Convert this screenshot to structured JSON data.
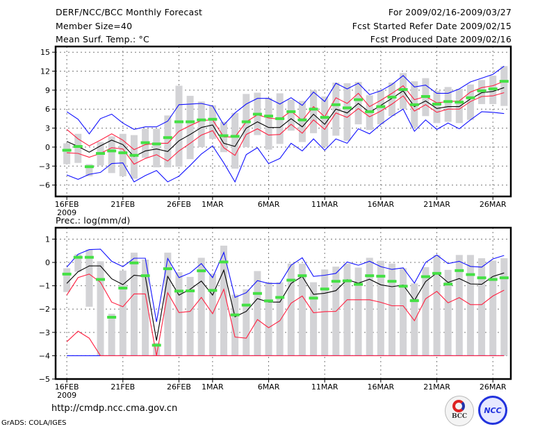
{
  "header": {
    "title": "DERF/NCC/BCC Monthly Forecast",
    "member_size": "Member Size=40",
    "variable": "Mean Surf. Temp.: °C",
    "period": "For 2009/02/16-2009/03/27",
    "started": "Fcst Started Refer Date 2009/02/15",
    "produced": "Fcst Produced Date 2009/02/16"
  },
  "footer": {
    "url": "http://cmdp.ncc.cma.gov.cn",
    "credit": "GrADS: COLA/IGES",
    "logos": [
      "BCC",
      "NCC"
    ]
  },
  "colors": {
    "mean": "#000000",
    "red": "#ff2040",
    "blue": "#1010ff",
    "green": "#44e044",
    "box": "#d3d3d6"
  },
  "chart_data": [
    {
      "type": "box-line",
      "title": "Mean Surf. Temp.: °C",
      "ylabel": "",
      "ylim": [
        -7.8,
        15.9
      ],
      "yticks": [
        -6,
        -3,
        0,
        3,
        6,
        9,
        12,
        15
      ],
      "xlim": [
        -1,
        39.6
      ],
      "grid": true,
      "xticks": [
        {
          "day": 0,
          "label": "16FEB",
          "sub": "2009"
        },
        {
          "day": 5,
          "label": "21FEB"
        },
        {
          "day": 10,
          "label": "26FEB"
        },
        {
          "day": 13,
          "label": "1MAR"
        },
        {
          "day": 18,
          "label": "6MAR"
        },
        {
          "day": 23,
          "label": "11MAR"
        },
        {
          "day": 28,
          "label": "16MAR"
        },
        {
          "day": 33,
          "label": "21MAR"
        },
        {
          "day": 38,
          "label": "26MAR"
        }
      ],
      "box_min": [
        -2.7,
        -2.5,
        -4.6,
        -2.9,
        -4.1,
        -4.6,
        -5.0,
        -1.7,
        -3.2,
        -3.2,
        -3.1,
        -1.9,
        0,
        1.3,
        -0.8,
        -3.4,
        0,
        1.9,
        -0.4,
        0.5,
        2.6,
        0.8,
        2.2,
        0.1,
        1.8,
        1.0,
        3.6,
        2.7,
        3.6,
        4.9,
        6.0,
        3.1,
        4.9,
        3.8,
        4.0,
        3.8,
        4.3,
        6.8,
        6.8,
        6.5
      ],
      "box_max": [
        0.6,
        2.1,
        -2.7,
        0.8,
        1.7,
        2.1,
        1.9,
        2.9,
        2.9,
        5.0,
        9.7,
        8.1,
        7.2,
        6.6,
        4.0,
        5.4,
        8.4,
        8.6,
        7.8,
        8.5,
        7.5,
        7.3,
        9.0,
        8.0,
        10.2,
        10.1,
        10.3,
        8.2,
        9.0,
        10.2,
        11.7,
        10.4,
        10.9,
        8.9,
        9.5,
        9.2,
        9.9,
        10.6,
        11.3,
        12.8
      ],
      "green": [
        -0.5,
        0.1,
        -3.1,
        -1.0,
        -0.6,
        -0.9,
        -1.3,
        0.7,
        0.5,
        1.5,
        4.0,
        4.0,
        4.3,
        4.4,
        1.8,
        1.7,
        4.0,
        5.2,
        4.9,
        4.5,
        5.6,
        4.3,
        6.0,
        4.7,
        6.7,
        6.2,
        7.5,
        5.6,
        6.4,
        7.9,
        9.1,
        6.7,
        8.0,
        6.8,
        7.2,
        7.1,
        7.8,
        8.9,
        9.2,
        10.4
      ],
      "series": [
        {
          "name": "blue_upper",
          "color": "#1010ff",
          "values": [
            5.6,
            4.4,
            2.1,
            4.5,
            5.2,
            3.8,
            2.8,
            3.2,
            3.2,
            4.1,
            6.7,
            6.8,
            6.9,
            6.5,
            3.5,
            5.4,
            6.8,
            7.7,
            7.7,
            6.8,
            7.8,
            6.6,
            8.7,
            7.2,
            10.1,
            9.2,
            10.1,
            8.3,
            8.9,
            9.9,
            11.3,
            9.5,
            9.8,
            8.5,
            8.5,
            9.2,
            10.3,
            10.9,
            11.5,
            12.8
          ]
        },
        {
          "name": "blue_lower",
          "color": "#1010ff",
          "values": [
            -4.4,
            -5.1,
            -4.3,
            -4.0,
            -2.6,
            -2.5,
            -5.5,
            -4.5,
            -3.7,
            -5.5,
            -4.6,
            -2.9,
            -1.1,
            0.2,
            -2.5,
            -5.5,
            -1.2,
            -0.1,
            -2.6,
            -1.8,
            0.6,
            -0.6,
            1.3,
            -0.5,
            1.3,
            0.6,
            2.9,
            2.1,
            3.6,
            4.9,
            6.0,
            2.5,
            4.3,
            2.8,
            3.8,
            2.9,
            4.3,
            5.6,
            5.5,
            5.3
          ]
        },
        {
          "name": "red_upper",
          "color": "#ff2040",
          "values": [
            2.8,
            1.3,
            0.2,
            1.1,
            2.1,
            1.1,
            -0.4,
            0.4,
            0.6,
            0.6,
            2.5,
            3.4,
            4.2,
            4.3,
            1.6,
            1.6,
            4.0,
            5.1,
            4.6,
            4.4,
            5.7,
            4.2,
            6.4,
            4.8,
            7.8,
            6.9,
            8.5,
            6.4,
            7.4,
            8.5,
            9.7,
            7.5,
            8.0,
            7.0,
            7.2,
            7.3,
            8.7,
            9.4,
            9.7,
            10.4
          ]
        },
        {
          "name": "red_lower",
          "color": "#ff2040",
          "values": [
            -0.9,
            -1.0,
            -1.6,
            -1.0,
            -0.1,
            -0.3,
            -2.7,
            -1.8,
            -1.2,
            -2.2,
            -0.6,
            0.6,
            1.9,
            2.6,
            -0.1,
            -1.3,
            2.0,
            2.9,
            1.9,
            2.0,
            3.6,
            2.2,
            4.3,
            2.8,
            5.4,
            4.7,
            6.1,
            4.8,
            5.7,
            6.8,
            8.1,
            5.7,
            6.7,
            5.5,
            6.0,
            6.0,
            7.2,
            8.0,
            8.1,
            8.6
          ]
        },
        {
          "name": "mean",
          "color": "#000000",
          "values": [
            0.9,
            0.1,
            -0.8,
            0.2,
            1.1,
            0.4,
            -1.5,
            -0.6,
            -0.3,
            -0.7,
            1.0,
            2.0,
            3.1,
            3.5,
            0.6,
            0.1,
            3.0,
            4.0,
            3.1,
            3.1,
            4.5,
            3.2,
            5.2,
            3.6,
            6.0,
            5.4,
            6.9,
            5.5,
            6.6,
            7.7,
            8.9,
            6.4,
            7.3,
            6.1,
            6.4,
            6.4,
            7.6,
            8.6,
            8.8,
            9.4
          ]
        }
      ]
    },
    {
      "type": "box-line",
      "title": "Prec.: log(mm/d)",
      "ylim": [
        -5,
        1.49
      ],
      "yticks": [
        -5,
        -4,
        -3,
        -2,
        -1,
        0,
        1
      ],
      "xlim": [
        -1,
        39.6
      ],
      "grid": true,
      "xticks": [
        {
          "day": 0,
          "label": "16FEB",
          "sub": "2009"
        },
        {
          "day": 5,
          "label": "21FEB"
        },
        {
          "day": 10,
          "label": "26FEB"
        },
        {
          "day": 13,
          "label": "1MAR"
        },
        {
          "day": 18,
          "label": "6MAR"
        },
        {
          "day": 23,
          "label": "11MAR"
        },
        {
          "day": 28,
          "label": "16MAR"
        },
        {
          "day": 33,
          "label": "21MAR"
        },
        {
          "day": 38,
          "label": "26MAR"
        }
      ],
      "box_min": [
        -1.27,
        -0.4,
        -1.9,
        -4,
        -4,
        -4,
        -4,
        -4,
        -4,
        -4,
        -4,
        -4,
        -4,
        -4,
        -4,
        -4,
        -4,
        -4,
        -4,
        -4,
        -4,
        -4,
        -4,
        -4,
        -4,
        -4,
        -4,
        -4,
        -4,
        -4,
        -4,
        -4,
        -4,
        -4,
        -4,
        -4,
        -4,
        -4,
        -4,
        -4
      ],
      "box_max": [
        -0.25,
        0.35,
        0.55,
        0.05,
        -2.2,
        -0.35,
        0.42,
        0.12,
        -3.45,
        0.42,
        -0.42,
        -0.62,
        0.2,
        -0.48,
        0.72,
        -1.38,
        -1.15,
        -0.37,
        -0.85,
        -0.85,
        -0.05,
        -0.05,
        -0.85,
        -0.3,
        -0.18,
        -0.05,
        -0.22,
        0.2,
        0.07,
        -0.05,
        -0.25,
        -0.9,
        -0.2,
        0.32,
        -0.32,
        0.32,
        0.32,
        0.18,
        0.08,
        0.18
      ],
      "green": [
        -0.5,
        0.22,
        0.22,
        -0.73,
        -2.35,
        -1.1,
        -0.02,
        -0.57,
        -3.55,
        -0.27,
        -1.23,
        -1.22,
        -0.36,
        -1.2,
        0.02,
        -2.25,
        -1.83,
        -1.33,
        -1.65,
        -1.5,
        -0.76,
        -0.57,
        -1.53,
        -1.14,
        -0.81,
        -0.79,
        -0.94,
        -0.57,
        -0.59,
        -0.81,
        -1.02,
        -1.64,
        -0.61,
        -0.47,
        -0.93,
        -0.35,
        -0.52,
        -0.66,
        -0.73,
        -0.66
      ],
      "series": [
        {
          "name": "blue_lower",
          "color": "#1010ff",
          "values": [
            -4,
            -4,
            -4,
            -4,
            -4,
            -4,
            -4,
            -4,
            -4,
            -4,
            -4,
            -4,
            -4,
            -4,
            -4,
            -4,
            -4,
            -4,
            -4,
            -4,
            -4,
            -4,
            -4,
            -4,
            -4,
            -4,
            -4,
            -4,
            -4,
            -4,
            -4,
            -4,
            -4,
            -4,
            -4,
            -4,
            -4,
            -4,
            -4,
            -4
          ]
        },
        {
          "name": "red_lower",
          "color": "#ff2040",
          "values": [
            -3.4,
            -2.95,
            -3.25,
            -4,
            -4,
            -4,
            -4,
            -4,
            -4,
            -4,
            -4,
            -4,
            -4,
            -4,
            -4,
            -4,
            -4,
            -4,
            -4,
            -4,
            -4,
            -4,
            -4,
            -4,
            -4,
            -4,
            -4,
            -4,
            -4,
            -4,
            -4,
            -4,
            -4,
            -4,
            -4,
            -4,
            -4,
            -4,
            -4,
            -4
          ]
        },
        {
          "name": "blue_upper",
          "color": "#1010ff",
          "values": [
            -0.2,
            0.35,
            0.55,
            0.57,
            0.05,
            -0.18,
            0.18,
            0.18,
            -2.55,
            0.17,
            -0.65,
            -0.45,
            -0.05,
            -0.65,
            0.43,
            -1.5,
            -1.3,
            -0.78,
            -0.9,
            -0.9,
            -0.12,
            0.2,
            -0.6,
            -0.55,
            -0.47,
            0.02,
            -0.12,
            0.05,
            -0.18,
            -0.3,
            -0.23,
            -0.89,
            0,
            0.32,
            -0.05,
            0.05,
            -0.17,
            -0.2,
            0.15,
            0.3
          ]
        },
        {
          "name": "red_upper",
          "color": "#ff2040",
          "values": [
            -1.4,
            -0.65,
            -0.5,
            -0.85,
            -1.7,
            -1.9,
            -1.35,
            -1.35,
            -4.0,
            -1.3,
            -2.15,
            -2.1,
            -1.5,
            -2.2,
            -1.15,
            -3.2,
            -3.25,
            -2.45,
            -2.8,
            -2.5,
            -1.75,
            -1.44,
            -2.16,
            -2.11,
            -2.1,
            -1.6,
            -1.6,
            -1.6,
            -1.71,
            -1.86,
            -1.86,
            -2.5,
            -1.56,
            -1.24,
            -1.73,
            -1.51,
            -1.81,
            -1.81,
            -1.44,
            -1.19
          ]
        },
        {
          "name": "mean",
          "color": "#000000",
          "values": [
            -0.9,
            -0.4,
            -0.15,
            -0.15,
            -0.7,
            -0.95,
            -0.55,
            -0.6,
            -3.35,
            -0.6,
            -1.4,
            -1.15,
            -0.8,
            -1.4,
            -0.33,
            -2.33,
            -2.1,
            -1.55,
            -1.7,
            -1.7,
            -0.9,
            -0.6,
            -1.37,
            -1.32,
            -1.21,
            -0.74,
            -0.89,
            -0.72,
            -0.96,
            -1.04,
            -0.97,
            -1.63,
            -0.82,
            -0.45,
            -0.86,
            -0.69,
            -0.92,
            -0.94,
            -0.6,
            -0.45
          ]
        }
      ]
    }
  ]
}
